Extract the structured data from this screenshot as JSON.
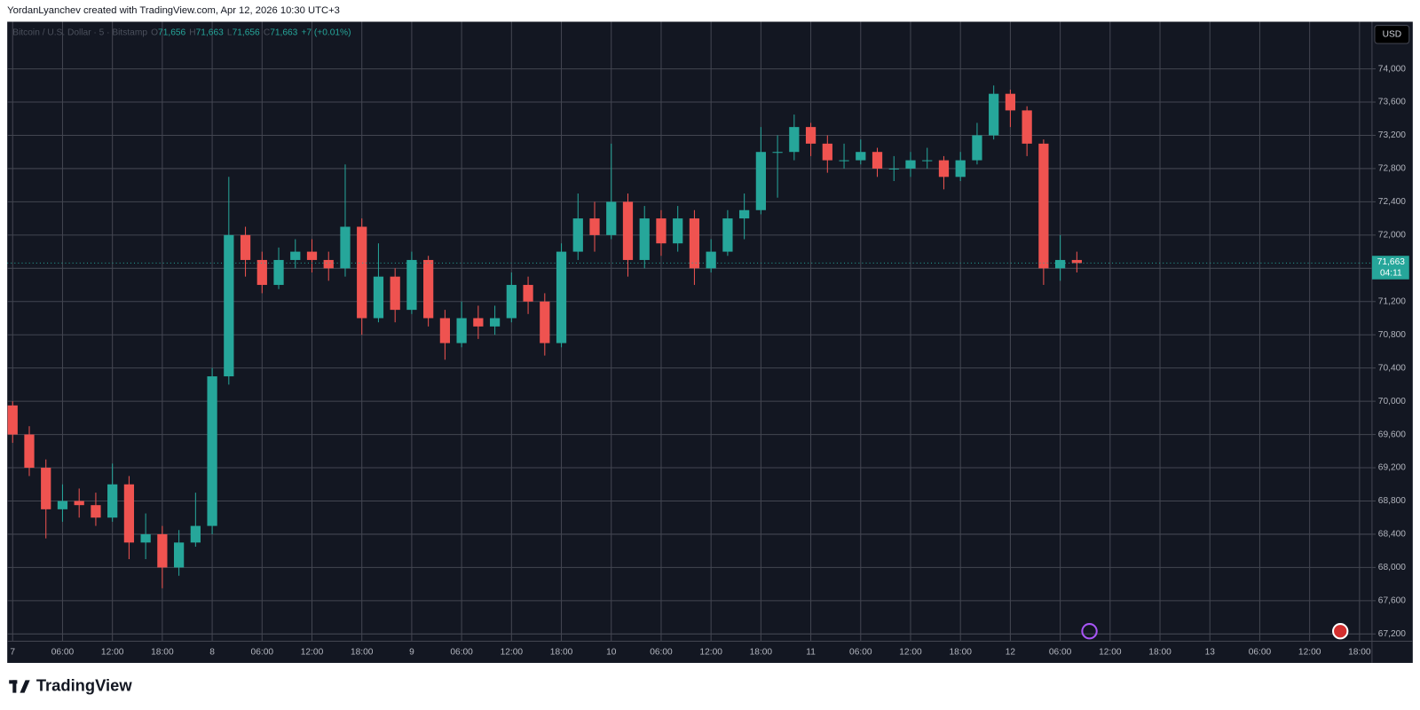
{
  "header": "YordanLyanchev created with TradingView.com, Apr 12, 2026 10:30 UTC+3",
  "logo": "TradingView",
  "chart_data": {
    "type": "candlestick",
    "symbol": "Bitcoin / U.S. Dollar · 5 · Bitstamp",
    "ohlc_legend": [
      "O",
      "71,656",
      "H",
      "71,663",
      "L",
      "71,656",
      "C",
      "71,663",
      "+7 (+0.01%)"
    ],
    "currency": "USD",
    "countdown": "04:11",
    "last_price": {
      "value": 71663,
      "label": "71,663"
    },
    "up_color": "#26a69a",
    "down_color": "#ef5350",
    "grid": true,
    "x": [
      0,
      2,
      4,
      6,
      8,
      10,
      12,
      14,
      16,
      18,
      20,
      22,
      24,
      26,
      28,
      30,
      32,
      34,
      36,
      38,
      40,
      42,
      44,
      46,
      48,
      50,
      52,
      54,
      56,
      58,
      60,
      62,
      64,
      66,
      68,
      70,
      72,
      74,
      76,
      78,
      80,
      82,
      84,
      86,
      88,
      90,
      92,
      94,
      96,
      98,
      100,
      102,
      104,
      106,
      108,
      110,
      112,
      114,
      116,
      118,
      120,
      122,
      124,
      126,
      128
    ],
    "open": [
      69950,
      69600,
      69200,
      68700,
      68800,
      68750,
      68600,
      69000,
      68300,
      68400,
      68000,
      68300,
      68500,
      70300,
      72000,
      71700,
      71400,
      71700,
      71800,
      71700,
      71600,
      72100,
      71000,
      71500,
      71100,
      71700,
      71000,
      70700,
      71000,
      70900,
      71000,
      71400,
      71200,
      70700,
      71800,
      72200,
      72000,
      72400,
      71700,
      72200,
      71900,
      72200,
      71600,
      71800,
      72200,
      72300,
      73000,
      73000,
      73300,
      73100,
      72900,
      72900,
      73000,
      72800,
      72800,
      72900,
      72900,
      72700,
      72900,
      73200,
      73700,
      73500,
      73100,
      71600,
      71700
    ],
    "high": [
      70000,
      69700,
      69300,
      69000,
      68950,
      68900,
      69250,
      69100,
      68650,
      68500,
      68450,
      68900,
      70400,
      72700,
      72100,
      71800,
      71850,
      71950,
      71950,
      71800,
      72850,
      72200,
      71900,
      71600,
      71800,
      71750,
      71100,
      71200,
      71150,
      71150,
      71550,
      71500,
      71300,
      71900,
      72500,
      72400,
      73100,
      72500,
      72350,
      72300,
      72350,
      72300,
      71950,
      72300,
      72500,
      73300,
      73200,
      73450,
      73350,
      73200,
      73100,
      73150,
      73050,
      72950,
      73000,
      73050,
      72950,
      73000,
      73350,
      73800,
      73750,
      73550,
      73150,
      72000,
      71800
    ],
    "low": [
      69500,
      69100,
      68350,
      68550,
      68600,
      68500,
      68550,
      68100,
      68100,
      67750,
      67900,
      68250,
      68400,
      70200,
      71500,
      71300,
      71350,
      71600,
      71550,
      71450,
      71500,
      70800,
      70950,
      70950,
      71050,
      70900,
      70500,
      70650,
      70750,
      70800,
      70950,
      71050,
      70550,
      70650,
      71700,
      71800,
      71950,
      71500,
      71600,
      71750,
      71800,
      71400,
      71550,
      71750,
      71950,
      72250,
      72450,
      72900,
      72950,
      72750,
      72800,
      72850,
      72700,
      72650,
      72700,
      72800,
      72550,
      72650,
      72850,
      73150,
      73300,
      72950,
      71400,
      71450,
      71550
    ],
    "close": [
      69600,
      69200,
      68700,
      68800,
      68750,
      68600,
      69000,
      68300,
      68400,
      68000,
      68300,
      68500,
      70300,
      72000,
      71700,
      71400,
      71700,
      71800,
      71700,
      71600,
      72100,
      71000,
      71500,
      71100,
      71700,
      71000,
      70700,
      71000,
      70900,
      71000,
      71400,
      71200,
      70700,
      71800,
      72200,
      72000,
      72400,
      71700,
      72200,
      71900,
      72200,
      71600,
      71800,
      72200,
      72300,
      73000,
      73000,
      73300,
      73100,
      72900,
      72900,
      73000,
      72800,
      72800,
      72900,
      72900,
      72700,
      72900,
      73200,
      73700,
      73500,
      73100,
      71600,
      71700,
      71663
    ],
    "xlim": [
      -0.65,
      163.5
    ],
    "xticks": [
      {
        "value": 0,
        "label": "7"
      },
      {
        "value": 6,
        "label": "06:00"
      },
      {
        "value": 12,
        "label": "12:00"
      },
      {
        "value": 18,
        "label": "18:00"
      },
      {
        "value": 24,
        "label": "8"
      },
      {
        "value": 30,
        "label": "06:00"
      },
      {
        "value": 36,
        "label": "12:00"
      },
      {
        "value": 42,
        "label": "18:00"
      },
      {
        "value": 48,
        "label": "9"
      },
      {
        "value": 54,
        "label": "06:00"
      },
      {
        "value": 60,
        "label": "12:00"
      },
      {
        "value": 66,
        "label": "18:00"
      },
      {
        "value": 72,
        "label": "10"
      },
      {
        "value": 78,
        "label": "06:00"
      },
      {
        "value": 84,
        "label": "12:00"
      },
      {
        "value": 90,
        "label": "18:00"
      },
      {
        "value": 96,
        "label": "11"
      },
      {
        "value": 102,
        "label": "06:00"
      },
      {
        "value": 108,
        "label": "12:00"
      },
      {
        "value": 114,
        "label": "18:00"
      },
      {
        "value": 120,
        "label": "12"
      },
      {
        "value": 126,
        "label": "06:00"
      },
      {
        "value": 132,
        "label": "12:00"
      },
      {
        "value": 138,
        "label": "18:00"
      },
      {
        "value": 144,
        "label": "13"
      },
      {
        "value": 150,
        "label": "06:00"
      },
      {
        "value": 156,
        "label": "12:00"
      },
      {
        "value": 162,
        "label": "18:00"
      }
    ],
    "ylim": [
      67113,
      74567
    ],
    "yticks": [
      {
        "value": 67200,
        "label": "67,200"
      },
      {
        "value": 67600,
        "label": "67,600"
      },
      {
        "value": 68000,
        "label": "68,000"
      },
      {
        "value": 68400,
        "label": "68,400"
      },
      {
        "value": 68800,
        "label": "68,800"
      },
      {
        "value": 69200,
        "label": "69,200"
      },
      {
        "value": 69600,
        "label": "69,600"
      },
      {
        "value": 70000,
        "label": "70,000"
      },
      {
        "value": 70400,
        "label": "70,400"
      },
      {
        "value": 70800,
        "label": "70,800"
      },
      {
        "value": 71200,
        "label": "71,200"
      },
      {
        "value": 71600,
        "label": "71,600"
      },
      {
        "value": 72000,
        "label": "72,000"
      },
      {
        "value": 72400,
        "label": "72,400"
      },
      {
        "value": 72800,
        "label": "72,800"
      },
      {
        "value": 73200,
        "label": "73,200"
      },
      {
        "value": 73600,
        "label": "73,600"
      },
      {
        "value": 74000,
        "label": "74,000"
      }
    ]
  }
}
